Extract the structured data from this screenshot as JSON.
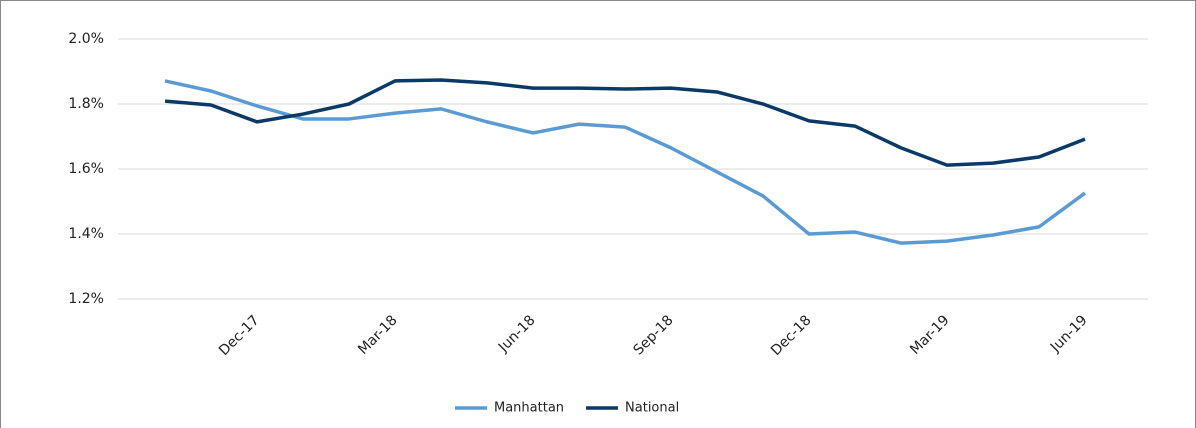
{
  "chart_data": {
    "type": "line",
    "categories": [
      null,
      null,
      "Dec-17",
      null,
      null,
      "Mar-18",
      null,
      null,
      "Jun-18",
      null,
      null,
      "Sep-18",
      null,
      null,
      "Dec-18",
      null,
      null,
      "Mar-19",
      null,
      null,
      "Jun-19"
    ],
    "series": [
      {
        "name": "Manhattan",
        "color": "#5b9bd5",
        "values": [
          1.871,
          1.84,
          1.794,
          1.754,
          1.754,
          1.772,
          1.785,
          1.745,
          1.711,
          1.738,
          1.729,
          1.665,
          1.591,
          1.517,
          1.4,
          1.406,
          1.372,
          1.378,
          1.397,
          1.422,
          1.526
        ]
      },
      {
        "name": "National",
        "color": "#0b3a66",
        "values": [
          1.809,
          1.797,
          1.745,
          1.769,
          1.8,
          1.871,
          1.874,
          1.865,
          1.849,
          1.849,
          1.846,
          1.849,
          1.837,
          1.8,
          1.748,
          1.732,
          1.665,
          1.612,
          1.618,
          1.637,
          1.692
        ]
      }
    ],
    "ylim": [
      1.2,
      2.0
    ],
    "yticks": [
      {
        "value": 1.2,
        "label": "1.2%"
      },
      {
        "value": 1.4,
        "label": "1.4%"
      },
      {
        "value": 1.6,
        "label": "1.6%"
      },
      {
        "value": 1.8,
        "label": "1.8%"
      },
      {
        "value": 2.0,
        "label": "2.0%"
      }
    ],
    "grid": true,
    "legend": "bottom"
  }
}
